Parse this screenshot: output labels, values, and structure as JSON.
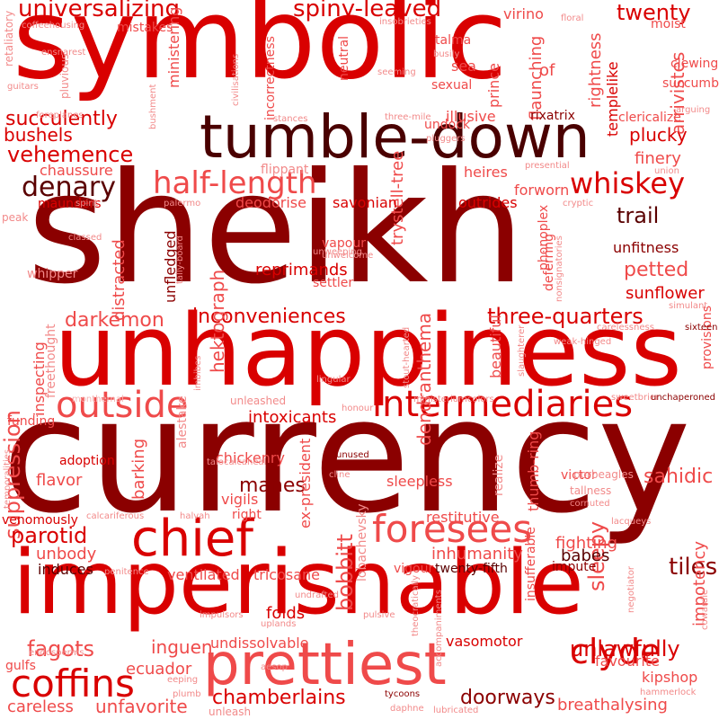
{
  "palette": {
    "darkest": "#5a0000",
    "dark": "#8b0000",
    "red": "#d90000",
    "bright": "#e31b1b",
    "salmon": "#ef4a4a",
    "light": "#f28a8a",
    "pale": "#f6b3b3"
  },
  "words": [
    {
      "text": "symbolic",
      "color": "#d90000"
    },
    {
      "text": "sheikh",
      "color": "#8b0000"
    },
    {
      "text": "currency",
      "color": "#8b0000"
    },
    {
      "text": "unhappiness",
      "color": "#d90000"
    },
    {
      "text": "imperishable",
      "color": "#d90000"
    },
    {
      "text": "tumble-down",
      "color": "#4a0000"
    },
    {
      "text": "prettiest",
      "color": "#ef4a4a"
    },
    {
      "text": "chief",
      "color": "#d90000"
    },
    {
      "text": "foresees",
      "color": "#ef4a4a"
    },
    {
      "text": "intermediaries",
      "color": "#d90000"
    },
    {
      "text": "outside",
      "color": "#ef4a4a"
    },
    {
      "text": "coffins",
      "color": "#d90000"
    },
    {
      "text": "clyde",
      "color": "#d90000"
    },
    {
      "text": "half-length",
      "color": "#ef4a4a"
    },
    {
      "text": "whiskey",
      "color": "#d90000"
    },
    {
      "text": "denary",
      "color": "#5a0000"
    },
    {
      "text": "universalizing",
      "color": "#d90000"
    },
    {
      "text": "spiny-leaved",
      "color": "#d90000"
    },
    {
      "text": "twenty",
      "color": "#d90000"
    },
    {
      "text": "succulently",
      "color": "#d90000"
    },
    {
      "text": "vehemence",
      "color": "#d90000"
    },
    {
      "text": "inconveniences",
      "color": "#d90000"
    },
    {
      "text": "three-quarters",
      "color": "#d90000"
    },
    {
      "text": "suppression",
      "color": "#ef4a4a"
    },
    {
      "text": "darkemon",
      "color": "#ef4a4a"
    },
    {
      "text": "unlawfully",
      "color": "#d90000"
    },
    {
      "text": "chamberlains",
      "color": "#d90000"
    },
    {
      "text": "doorways",
      "color": "#8b0000"
    },
    {
      "text": "fagots",
      "color": "#ef4a4a"
    },
    {
      "text": "parotid",
      "color": "#d90000"
    },
    {
      "text": "tiles",
      "color": "#8b0000"
    },
    {
      "text": "petted",
      "color": "#ef4a4a"
    },
    {
      "text": "trail",
      "color": "#5a0000"
    },
    {
      "text": "sleepy",
      "color": "#ef4a4a"
    },
    {
      "text": "sahidic",
      "color": "#ef4a4a"
    },
    {
      "text": "bobbitt",
      "color": "#ef4a4a"
    },
    {
      "text": "inhumanity",
      "color": "#ef4a4a"
    },
    {
      "text": "babes",
      "color": "#5a0000"
    },
    {
      "text": "fighting",
      "color": "#ef4a4a"
    },
    {
      "text": "impotency",
      "color": "#ef4a4a"
    },
    {
      "text": "dendranthema",
      "color": "#ef4a4a"
    },
    {
      "text": "reprimands",
      "color": "#d90000"
    },
    {
      "text": "hektograph",
      "color": "#ef4a4a"
    },
    {
      "text": "intoxicants",
      "color": "#d90000"
    },
    {
      "text": "manes",
      "color": "#8b0000"
    },
    {
      "text": "chickenry",
      "color": "#ef4a4a"
    },
    {
      "text": "vigils",
      "color": "#ef4a4a"
    },
    {
      "text": "right",
      "color": "#ef4a4a"
    },
    {
      "text": "folds",
      "color": "#d90000"
    },
    {
      "text": "inguen",
      "color": "#ef4a4a"
    },
    {
      "text": "undissolvable",
      "color": "#ef4a4a"
    },
    {
      "text": "ecuador",
      "color": "#ef4a4a"
    },
    {
      "text": "breathalysing",
      "color": "#ef4a4a"
    },
    {
      "text": "unfavorite",
      "color": "#ef4a4a"
    },
    {
      "text": "careless",
      "color": "#ef4a4a"
    },
    {
      "text": "gulfs",
      "color": "#ef4a4a"
    },
    {
      "text": "vasomotor",
      "color": "#d90000"
    },
    {
      "text": "favourite",
      "color": "#ef4a4a"
    },
    {
      "text": "kipshop",
      "color": "#ef4a4a"
    },
    {
      "text": "restitutive",
      "color": "#ef4a4a"
    },
    {
      "text": "twenty-fifth",
      "color": "#5a0000"
    },
    {
      "text": "impute",
      "color": "#8b0000"
    },
    {
      "text": "induces",
      "color": "#5a0000"
    },
    {
      "text": "unbody",
      "color": "#ef4a4a"
    },
    {
      "text": "flavor",
      "color": "#ef4a4a"
    },
    {
      "text": "adoption",
      "color": "#d90000"
    },
    {
      "text": "funding",
      "color": "#ef4a4a"
    },
    {
      "text": "venomously",
      "color": "#d90000"
    },
    {
      "text": "sleepless",
      "color": "#ef4a4a"
    },
    {
      "text": "vigour",
      "color": "#ef4a4a"
    },
    {
      "text": "tricosane",
      "color": "#ef4a4a"
    },
    {
      "text": "ventilated",
      "color": "#ef4a4a"
    },
    {
      "text": "barking",
      "color": "#ef4a4a"
    },
    {
      "text": "distracted",
      "color": "#ef4a4a"
    },
    {
      "text": "unfledged",
      "color": "#8b0000"
    },
    {
      "text": "inspecting",
      "color": "#ef4a4a"
    },
    {
      "text": "chaussure",
      "color": "#ef4a4a"
    },
    {
      "text": "bushels",
      "color": "#d90000"
    },
    {
      "text": "finery",
      "color": "#ef4a4a"
    },
    {
      "text": "plucky",
      "color": "#d90000"
    },
    {
      "text": "unfitness",
      "color": "#8b0000"
    },
    {
      "text": "sunflower",
      "color": "#d90000"
    },
    {
      "text": "forworn",
      "color": "#ef4a4a"
    },
    {
      "text": "outrides",
      "color": "#d90000"
    },
    {
      "text": "heires",
      "color": "#ef4a4a"
    },
    {
      "text": "arrivistes",
      "color": "#ef4a4a"
    },
    {
      "text": "flaunching",
      "color": "#ef4a4a"
    },
    {
      "text": "rightness",
      "color": "#ef4a4a"
    },
    {
      "text": "templelike",
      "color": "#d90000"
    },
    {
      "text": "clericalize",
      "color": "#ef4a4a"
    },
    {
      "text": "illusive",
      "color": "#ef4a4a"
    },
    {
      "text": "rixatrix",
      "color": "#8b0000"
    },
    {
      "text": "undock",
      "color": "#ef4a4a"
    },
    {
      "text": "sexual",
      "color": "#ef4a4a"
    },
    {
      "text": "sea",
      "color": "#ef4a4a"
    },
    {
      "text": "virino",
      "color": "#ef4a4a"
    },
    {
      "text": "moist",
      "color": "#ef4a4a"
    },
    {
      "text": "of",
      "color": "#ef4a4a"
    },
    {
      "text": "clewing",
      "color": "#ef4a4a"
    },
    {
      "text": "succumb",
      "color": "#ef4a4a"
    },
    {
      "text": "provisions",
      "color": "#ef4a4a"
    },
    {
      "text": "beautiful",
      "color": "#ef4a4a"
    },
    {
      "text": "ministering",
      "color": "#ef4a4a"
    },
    {
      "text": "incorrectness",
      "color": "#ef4a4a"
    },
    {
      "text": "trystell-tree",
      "color": "#ef4a4a"
    },
    {
      "text": "deodorise",
      "color": "#ef4a4a"
    },
    {
      "text": "savonian",
      "color": "#d90000"
    },
    {
      "text": "vapour",
      "color": "#ef4a4a"
    },
    {
      "text": "settler",
      "color": "#ef4a4a"
    },
    {
      "text": "maunders",
      "color": "#d90000"
    },
    {
      "text": "flippant",
      "color": "#f28a8a"
    },
    {
      "text": "mistakes",
      "color": "#ef4a4a"
    },
    {
      "text": "talma",
      "color": "#ef4a4a"
    },
    {
      "text": "prince",
      "color": "#ef4a4a"
    },
    {
      "text": "neutral",
      "color": "#ef4a4a"
    },
    {
      "text": "ex-president",
      "color": "#ef4a4a"
    },
    {
      "text": "thumb-ring",
      "color": "#ef4a4a"
    },
    {
      "text": "realize",
      "color": "#f28a8a"
    },
    {
      "text": "phonoplex",
      "color": "#ef4a4a"
    },
    {
      "text": "deferring",
      "color": "#ef4a4a"
    },
    {
      "text": "insufferable",
      "color": "#ef4a4a"
    },
    {
      "text": "alestake",
      "color": "#f28a8a"
    },
    {
      "text": "lobachevsky",
      "color": "#f28a8a"
    },
    {
      "text": "victor",
      "color": "#ef4a4a"
    },
    {
      "text": "tallness",
      "color": "#f28a8a"
    },
    {
      "text": "porbeagles",
      "color": "#f28a8a"
    },
    {
      "text": "unleash",
      "color": "#f28a8a"
    },
    {
      "text": "unleashed",
      "color": "#f28a8a"
    },
    {
      "text": "whipper",
      "color": "#f28a8a"
    },
    {
      "text": "freethought",
      "color": "#f28a8a"
    },
    {
      "text": "peak",
      "color": "#f28a8a"
    },
    {
      "text": "pluvious",
      "color": "#f28a8a"
    },
    {
      "text": "retaliatory",
      "color": "#f28a8a"
    },
    {
      "text": "ensnarest",
      "color": "#f28a8a"
    },
    {
      "text": "coffeehousing",
      "color": "#f28a8a"
    },
    {
      "text": "guitars",
      "color": "#f28a8a"
    },
    {
      "text": "foreplanes",
      "color": "#f28a8a"
    },
    {
      "text": "bushment",
      "color": "#f28a8a"
    },
    {
      "text": "civilisations",
      "color": "#f28a8a"
    },
    {
      "text": "insobrieties",
      "color": "#f28a8a"
    },
    {
      "text": "busily",
      "color": "#f28a8a"
    },
    {
      "text": "seeming",
      "color": "#f28a8a"
    },
    {
      "text": "stances",
      "color": "#f28a8a"
    },
    {
      "text": "three-mile",
      "color": "#f28a8a"
    },
    {
      "text": "pluggers",
      "color": "#f28a8a"
    },
    {
      "text": "presential",
      "color": "#f28a8a"
    },
    {
      "text": "union",
      "color": "#f28a8a"
    },
    {
      "text": "cryptic",
      "color": "#f28a8a"
    },
    {
      "text": "arguing",
      "color": "#f28a8a"
    },
    {
      "text": "floral",
      "color": "#f28a8a"
    },
    {
      "text": "spirit",
      "color": "#f28a8a"
    },
    {
      "text": "palermo",
      "color": "#f28a8a"
    },
    {
      "text": "classed",
      "color": "#f28a8a"
    },
    {
      "text": "tally-board",
      "color": "#f28a8a"
    },
    {
      "text": "unweeping",
      "color": "#f28a8a"
    },
    {
      "text": "unwelcome",
      "color": "#f28a8a"
    },
    {
      "text": "nonsignatories",
      "color": "#f28a8a"
    },
    {
      "text": "simulant",
      "color": "#f28a8a"
    },
    {
      "text": "sixteen",
      "color": "#8b0000"
    },
    {
      "text": "carelessness",
      "color": "#f28a8a"
    },
    {
      "text": "slaughterer",
      "color": "#f28a8a"
    },
    {
      "text": "stout-hearted",
      "color": "#f28a8a"
    },
    {
      "text": "weak-hinged",
      "color": "#f28a8a"
    },
    {
      "text": "imbibes",
      "color": "#f28a8a"
    },
    {
      "text": "lingular",
      "color": "#f28a8a"
    },
    {
      "text": "honour",
      "color": "#f28a8a"
    },
    {
      "text": "ministeriumcolors",
      "color": "#f28a8a"
    },
    {
      "text": "sweetbrier",
      "color": "#f28a8a"
    },
    {
      "text": "unchaperoned",
      "color": "#8b0000"
    },
    {
      "text": "monthernal",
      "color": "#f6b3b3"
    },
    {
      "text": "temporalities",
      "color": "#f28a8a"
    },
    {
      "text": "unused",
      "color": "#8b0000"
    },
    {
      "text": "cline",
      "color": "#f28a8a"
    },
    {
      "text": "talocalcaneal",
      "color": "#f28a8a"
    },
    {
      "text": "calcariferous",
      "color": "#f28a8a"
    },
    {
      "text": "halvah",
      "color": "#f28a8a"
    },
    {
      "text": "cornuted",
      "color": "#f28a8a"
    },
    {
      "text": "lacqueys",
      "color": "#f28a8a"
    },
    {
      "text": "penitence",
      "color": "#f28a8a"
    },
    {
      "text": "theocratically",
      "color": "#f28a8a"
    },
    {
      "text": "undrafted",
      "color": "#f28a8a"
    },
    {
      "text": "pulsive",
      "color": "#f28a8a"
    },
    {
      "text": "uplands",
      "color": "#f28a8a"
    },
    {
      "text": "impulsors",
      "color": "#f28a8a"
    },
    {
      "text": "accompaniments",
      "color": "#f28a8a"
    },
    {
      "text": "negotiator",
      "color": "#f28a8a"
    },
    {
      "text": "cowardie",
      "color": "#f28a8a"
    },
    {
      "text": "hammerlock",
      "color": "#f28a8a"
    },
    {
      "text": "tycoons",
      "color": "#8b0000"
    },
    {
      "text": "aesop",
      "color": "#f28a8a"
    },
    {
      "text": "eeping",
      "color": "#f28a8a"
    },
    {
      "text": "plumb",
      "color": "#f28a8a"
    },
    {
      "text": "daphne",
      "color": "#f28a8a"
    },
    {
      "text": "lubricated",
      "color": "#f28a8a"
    },
    {
      "text": "endosperms",
      "color": "#f28a8a"
    }
  ]
}
